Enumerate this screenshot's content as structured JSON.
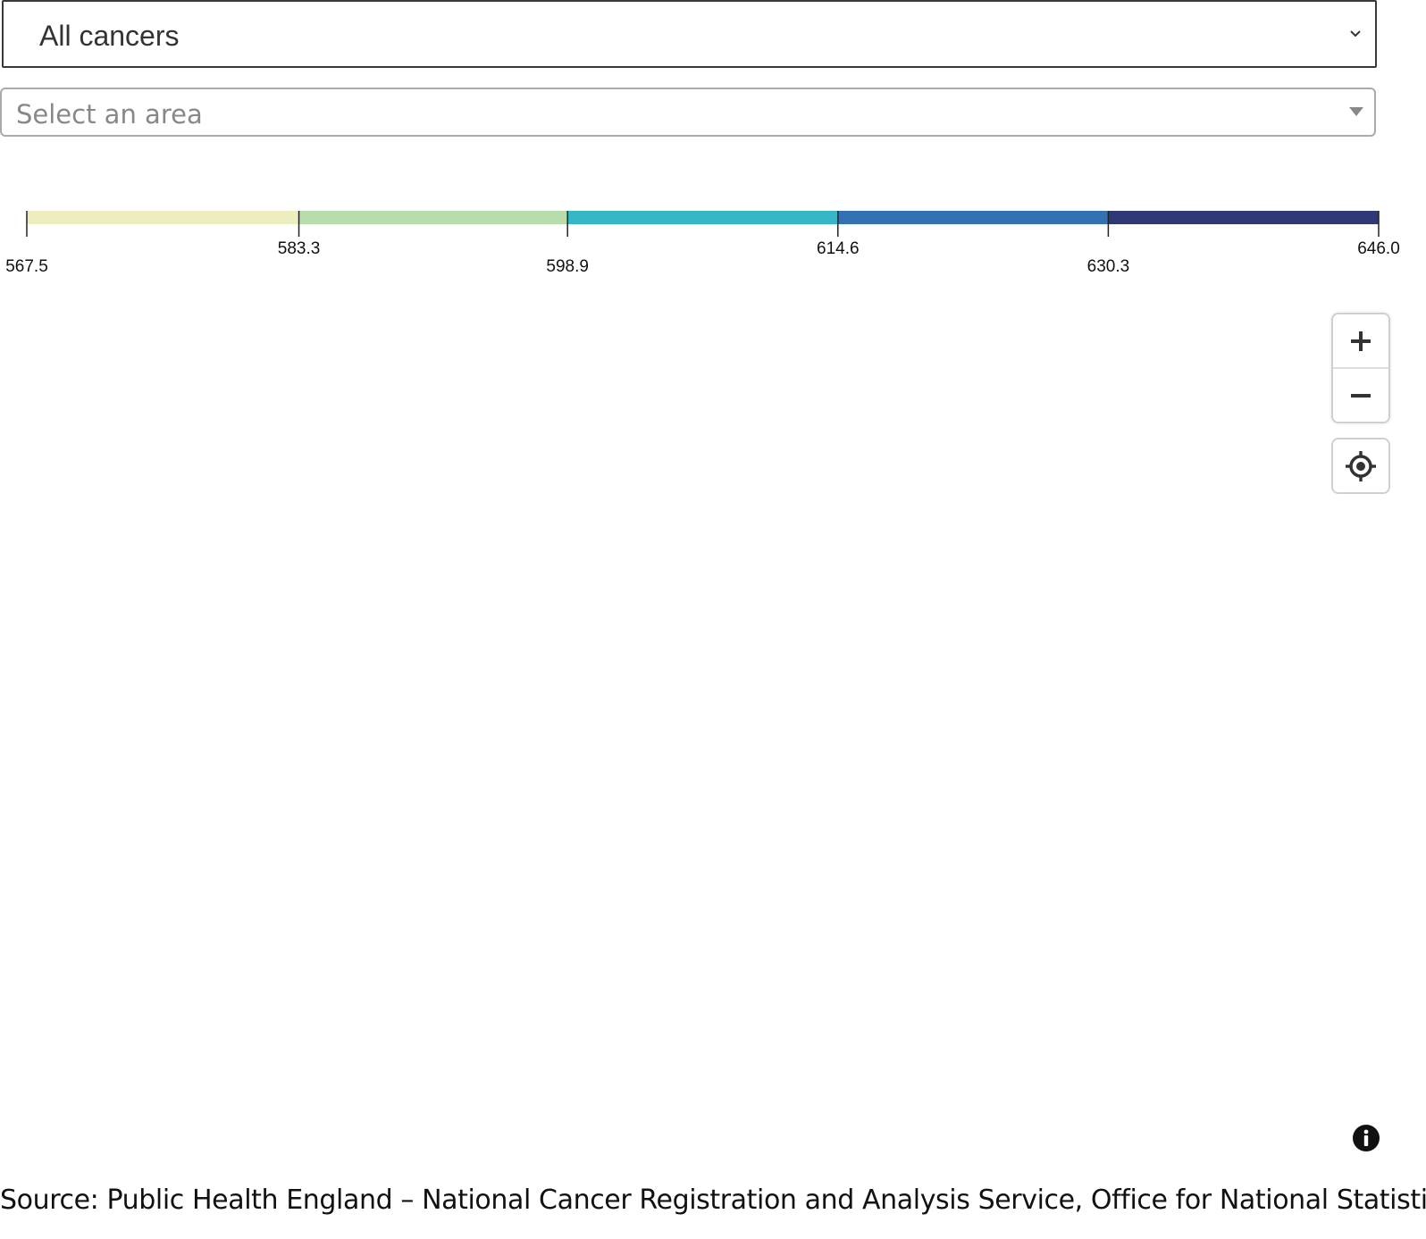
{
  "cancer_select": {
    "value": "All cancers",
    "icon": "chevron-down-icon"
  },
  "area_select": {
    "placeholder": "Select an area",
    "icon": "caret-down-icon"
  },
  "legend": {
    "thresholds": [
      "567.5",
      "583.3",
      "598.9",
      "614.6",
      "630.3",
      "646.0"
    ],
    "colors": [
      "#edeebf",
      "#b9ddaa",
      "#34b6c6",
      "#3371b4",
      "#2f3a75"
    ]
  },
  "map_controls": {
    "zoom_in_icon": "plus-icon",
    "zoom_out_icon": "minus-icon",
    "locate_icon": "crosshair-icon",
    "info_icon": "info-icon"
  },
  "source": {
    "text": "Source: Public Health England – National Cancer Registration and Analysis Service, Office for National Statistics"
  }
}
